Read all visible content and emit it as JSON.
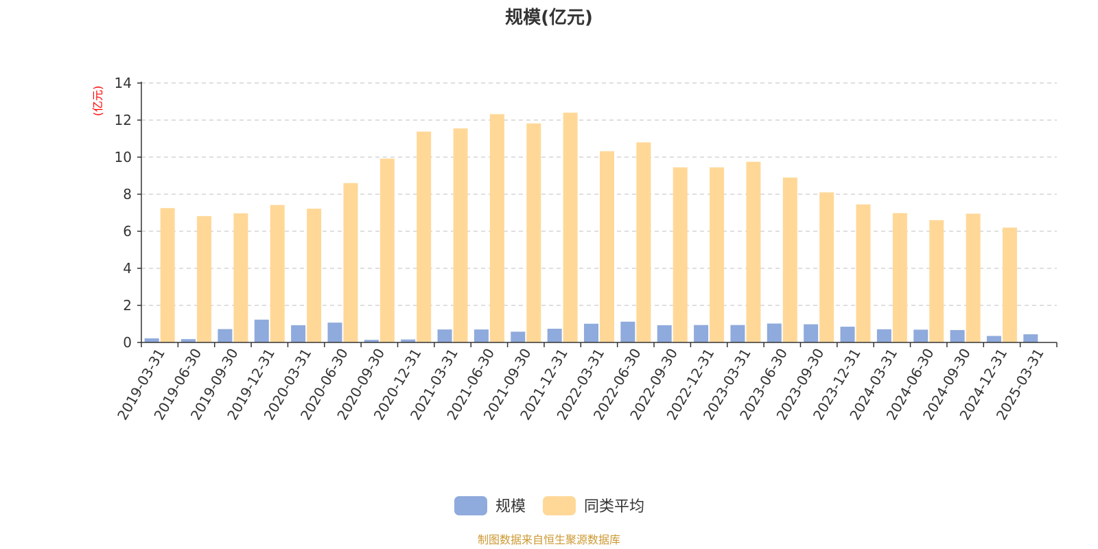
{
  "colors": {
    "series_scale": "#8faadc",
    "series_avg": "#ffd898",
    "axis": "#333333",
    "grid": "#cccccc",
    "unit_label": "#ff0000",
    "source": "#cc9933"
  },
  "footer": {
    "source": "制图数据来自恒生聚源数据库"
  },
  "chart_data": {
    "type": "bar",
    "title": "规模(亿元)",
    "ylabel": "(亿元)",
    "xlabel": "",
    "ylim": [
      0,
      14
    ],
    "yticks": [
      0,
      2,
      4,
      6,
      8,
      10,
      12,
      14
    ],
    "grid": true,
    "legend_position": "bottom-center",
    "categories": [
      "2019-03-31",
      "2019-06-30",
      "2019-09-30",
      "2019-12-31",
      "2020-03-31",
      "2020-06-30",
      "2020-09-30",
      "2020-12-31",
      "2021-03-31",
      "2021-06-30",
      "2021-09-30",
      "2021-12-31",
      "2022-03-31",
      "2022-06-30",
      "2022-09-30",
      "2022-12-31",
      "2023-03-31",
      "2023-06-30",
      "2023-09-30",
      "2023-12-31",
      "2024-03-31",
      "2024-06-30",
      "2024-09-30",
      "2024-12-31",
      "2025-03-31"
    ],
    "series": [
      {
        "name": "规模",
        "color": "#8faadc",
        "values": [
          0.22,
          0.18,
          0.72,
          1.23,
          0.93,
          1.07,
          0.14,
          0.16,
          0.7,
          0.7,
          0.58,
          0.74,
          1.01,
          1.12,
          0.93,
          0.94,
          0.94,
          1.02,
          0.98,
          0.85,
          0.71,
          0.69,
          0.67,
          0.35,
          0.44
        ]
      },
      {
        "name": "同类平均",
        "color": "#ffd898",
        "values": [
          7.25,
          6.82,
          6.97,
          7.42,
          7.22,
          8.6,
          9.92,
          11.38,
          11.55,
          12.32,
          11.82,
          12.4,
          10.32,
          10.8,
          9.45,
          9.45,
          9.75,
          8.9,
          8.1,
          7.45,
          6.98,
          6.6,
          6.95,
          6.2,
          null
        ]
      }
    ]
  }
}
